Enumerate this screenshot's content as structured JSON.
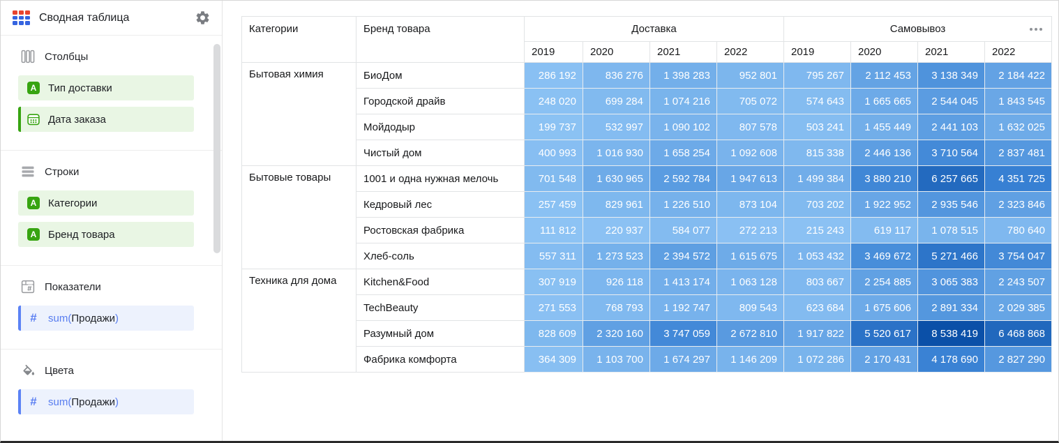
{
  "sidebar": {
    "title": "Сводная таблица",
    "sections": {
      "columns": {
        "label": "Столбцы",
        "chips": [
          {
            "text": "Тип доставки"
          },
          {
            "text": "Дата заказа"
          }
        ]
      },
      "rows": {
        "label": "Строки",
        "chips": [
          {
            "text": "Категории"
          },
          {
            "text": "Бренд товара"
          }
        ]
      },
      "measures": {
        "label": "Показатели",
        "chip": {
          "fn": "sum(",
          "field": "Продажи",
          "close": ")"
        }
      },
      "colors": {
        "label": "Цвета",
        "chip": {
          "fn": "sum(",
          "field": "Продажи",
          "close": ")"
        }
      }
    }
  },
  "icons": {
    "dimension_text_glyph": "A",
    "measure_hash_glyph": "#"
  },
  "colors": {
    "accent_green": "#37a411",
    "chip_green_bg": "#e9f6e4",
    "accent_blue": "#5b82f5",
    "chip_blue_bg": "#edf2fd",
    "logo_red": "#e8442f",
    "logo_blue": "#3564e0",
    "cell_gradient": [
      "#8DC3F4",
      "#3780D3",
      "#0B50A8"
    ]
  },
  "table": {
    "row_dim_headers": [
      "Категории",
      "Бренд товара"
    ],
    "groups_header": [
      {
        "label": "Доставка",
        "years": [
          "2019",
          "2020",
          "2021",
          "2022"
        ]
      },
      {
        "label": "Самовывоз",
        "years": [
          "2019",
          "2020",
          "2021",
          "2022"
        ]
      }
    ],
    "body": [
      {
        "category": "Бытовая химия",
        "rows": [
          {
            "brand": "БиоДом",
            "values": [
              "286 192",
              "836 276",
              "1 398 283",
              "952 801",
              "795 267",
              "2 112 453",
              "3 138 349",
              "2 184 422"
            ]
          },
          {
            "brand": "Городской драйв",
            "values": [
              "248 020",
              "699 284",
              "1 074 216",
              "705 072",
              "574 643",
              "1 665 665",
              "2 544 045",
              "1 843 545"
            ]
          },
          {
            "brand": "Мойдодыр",
            "values": [
              "199 737",
              "532 997",
              "1 090 102",
              "807 578",
              "503 241",
              "1 455 449",
              "2 441 103",
              "1 632 025"
            ]
          },
          {
            "brand": "Чистый дом",
            "values": [
              "400 993",
              "1 016 930",
              "1 658 254",
              "1 092 608",
              "815 338",
              "2 446 136",
              "3 710 564",
              "2 837 481"
            ]
          }
        ]
      },
      {
        "category": "Бытовые товары",
        "rows": [
          {
            "brand": "1001 и одна нужная мелочь",
            "values": [
              "701 548",
              "1 630 965",
              "2 592 784",
              "1 947 613",
              "1 499 384",
              "3 880 210",
              "6 257 665",
              "4 351 725"
            ]
          },
          {
            "brand": "Кедровый лес",
            "values": [
              "257 459",
              "829 961",
              "1 226 510",
              "873 104",
              "703 202",
              "1 922 952",
              "2 935 546",
              "2 323 846"
            ]
          },
          {
            "brand": "Ростовская фабрика",
            "values": [
              "111 812",
              "220 937",
              "584 077",
              "272 213",
              "215 243",
              "619 117",
              "1 078 515",
              "780 640"
            ]
          },
          {
            "brand": "Хлеб-соль",
            "values": [
              "557 311",
              "1 273 523",
              "2 394 572",
              "1 615 675",
              "1 053 432",
              "3 469 672",
              "5 271 466",
              "3 754 047"
            ]
          }
        ]
      },
      {
        "category": "Техника для дома",
        "rows": [
          {
            "brand": "Kitchen&Food",
            "values": [
              "307 919",
              "926 118",
              "1 413 174",
              "1 063 128",
              "803 667",
              "2 254 885",
              "3 065 383",
              "2 243 507"
            ]
          },
          {
            "brand": "TechBeauty",
            "values": [
              "271 553",
              "768 793",
              "1 192 747",
              "809 543",
              "623 684",
              "1 675 606",
              "2 891 334",
              "2 029 385"
            ]
          },
          {
            "brand": "Разумный дом",
            "values": [
              "828 609",
              "2 320 160",
              "3 747 059",
              "2 672 810",
              "1 917 822",
              "5 520 617",
              "8 538 419",
              "6 468 868"
            ]
          },
          {
            "brand": "Фабрика комфорта",
            "values": [
              "364 309",
              "1 103 700",
              "1 674 297",
              "1 146 209",
              "1 072 286",
              "2 170 431",
              "4 178 690",
              "2 827 290"
            ]
          }
        ]
      }
    ]
  }
}
